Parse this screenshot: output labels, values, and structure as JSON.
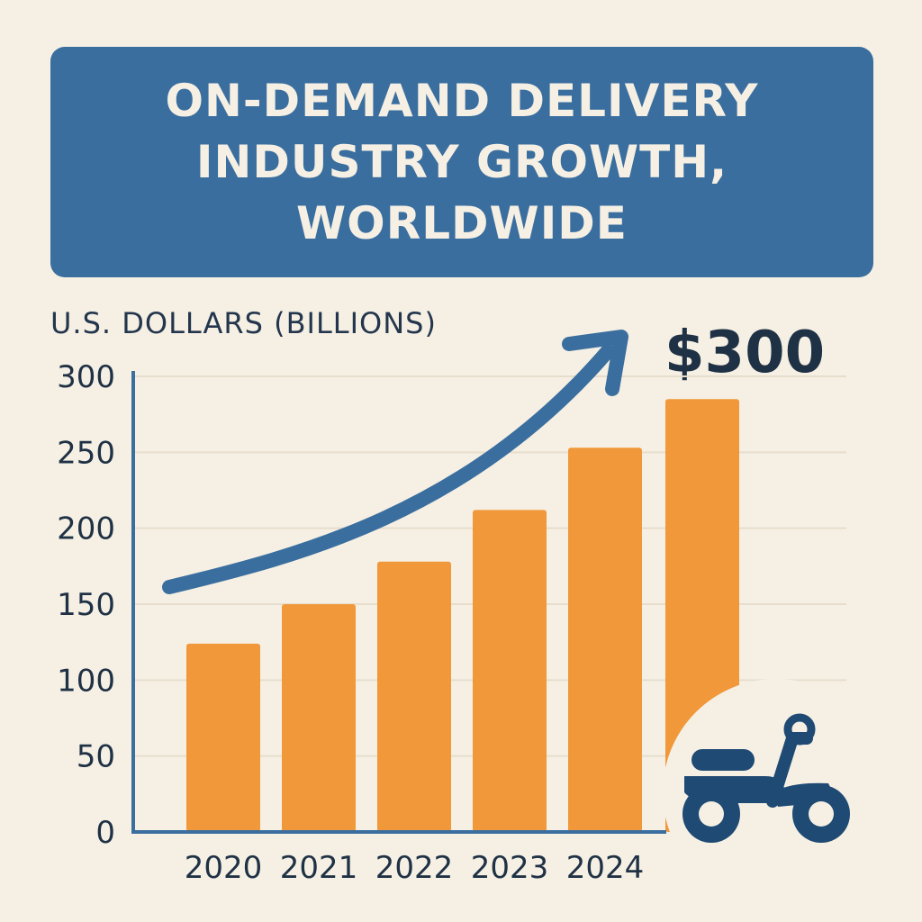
{
  "title": "ON-DEMAND DELIVERY INDUSTRY GROWTH, WORLDWIDE",
  "ylabel": "U.S. DOLLARS (BILLIONS)",
  "callout": "$300",
  "icons": {
    "scooter": "scooter-icon",
    "trend_arrow": "trend-arrow-icon"
  },
  "colors": {
    "banner": "#3a6e9f",
    "bar": "#f0983a",
    "arrow": "#3a6e9f",
    "background": "#f6f0e4",
    "text": "#1f3145"
  },
  "chart_data": {
    "type": "bar",
    "categories": [
      "2020",
      "2021",
      "2022",
      "2023",
      "2024"
    ],
    "values": [
      124,
      150,
      178,
      212,
      253
    ],
    "extra_bar_value": 285,
    "yticks": [
      "0",
      "50",
      "100",
      "150",
      "200",
      "250",
      "300"
    ],
    "ylim": [
      0,
      300
    ],
    "title": "ON-DEMAND DELIVERY INDUSTRY GROWTH, WORLDWIDE",
    "xlabel": "",
    "ylabel": "U.S. DOLLARS (BILLIONS)",
    "grid": true
  }
}
